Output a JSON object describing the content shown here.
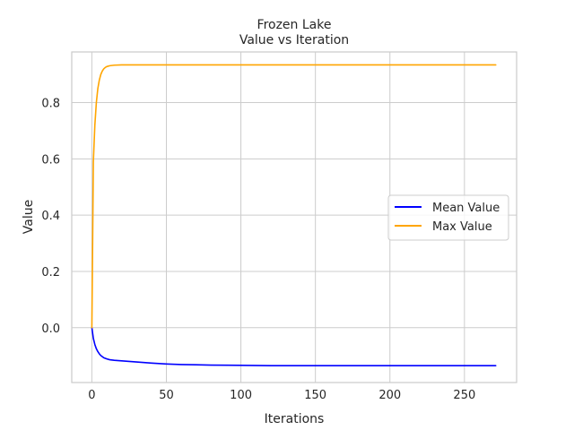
{
  "chart_data": {
    "type": "line",
    "title": "Frozen Lake",
    "subtitle": "Value vs Iteration",
    "xlabel": "Iterations",
    "ylabel": "Value",
    "xlim": [
      -13.5,
      285
    ],
    "ylim": [
      -0.195,
      0.98
    ],
    "xticks": [
      0,
      50,
      100,
      150,
      200,
      250
    ],
    "yticks": [
      0.0,
      0.2,
      0.4,
      0.6,
      0.8
    ],
    "grid": true,
    "legend_position": "center-right",
    "series": [
      {
        "name": "Mean Value",
        "color": "#0000ff",
        "x": [
          0,
          1,
          2,
          3,
          4,
          5,
          6,
          8,
          10,
          12,
          15,
          20,
          30,
          40,
          50,
          60,
          70,
          80,
          100,
          120,
          150,
          200,
          250,
          271
        ],
        "y": [
          0.0,
          -0.038,
          -0.06,
          -0.075,
          -0.085,
          -0.093,
          -0.099,
          -0.107,
          -0.111,
          -0.114,
          -0.116,
          -0.118,
          -0.122,
          -0.126,
          -0.129,
          -0.131,
          -0.132,
          -0.133,
          -0.134,
          -0.135,
          -0.135,
          -0.135,
          -0.135,
          -0.135
        ]
      },
      {
        "name": "Max Value",
        "color": "#ffa500",
        "x": [
          0,
          1,
          2,
          3,
          4,
          5,
          6,
          7,
          8,
          9,
          10,
          12,
          15,
          20,
          30,
          50,
          100,
          150,
          200,
          250,
          271
        ],
        "y": [
          0.0,
          0.59,
          0.72,
          0.8,
          0.85,
          0.88,
          0.9,
          0.912,
          0.92,
          0.925,
          0.928,
          0.931,
          0.933,
          0.934,
          0.934,
          0.934,
          0.934,
          0.934,
          0.934,
          0.934,
          0.934
        ]
      }
    ]
  }
}
